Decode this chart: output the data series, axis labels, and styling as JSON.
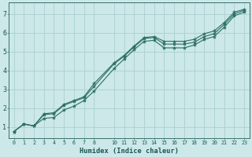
{
  "xlabel": "Humidex (Indice chaleur)",
  "bg_color": "#cce8e8",
  "line_color": "#2d6e65",
  "grid_color": "#aacfcf",
  "axis_color": "#3a7070",
  "text_color": "#1a5555",
  "xlim": [
    -0.5,
    23.5
  ],
  "ylim": [
    0.4,
    7.6
  ],
  "xticks": [
    0,
    1,
    2,
    3,
    4,
    5,
    6,
    7,
    8,
    10,
    11,
    12,
    13,
    14,
    15,
    16,
    17,
    18,
    19,
    20,
    21,
    22,
    23
  ],
  "yticks": [
    1,
    2,
    3,
    4,
    5,
    6,
    7
  ],
  "line1_x": [
    0,
    1,
    2,
    3,
    4,
    5,
    6,
    7,
    8,
    10,
    11,
    12,
    13,
    14,
    15,
    16,
    17,
    18,
    19,
    20,
    21,
    22,
    23
  ],
  "line1_y": [
    0.75,
    1.15,
    1.05,
    1.7,
    1.75,
    2.2,
    2.4,
    2.6,
    3.3,
    4.4,
    4.8,
    5.3,
    5.75,
    5.8,
    5.55,
    5.55,
    5.55,
    5.65,
    5.95,
    6.1,
    6.55,
    7.1,
    7.25
  ],
  "line2_x": [
    0,
    1,
    2,
    3,
    4,
    5,
    6,
    7,
    8,
    10,
    11,
    12,
    13,
    14,
    15,
    16,
    17,
    18,
    19,
    20,
    21,
    22,
    23
  ],
  "line2_y": [
    0.75,
    1.15,
    1.05,
    1.65,
    1.7,
    2.15,
    2.35,
    2.55,
    3.15,
    4.35,
    4.75,
    5.25,
    5.7,
    5.75,
    5.4,
    5.4,
    5.4,
    5.5,
    5.8,
    5.95,
    6.45,
    7.0,
    7.2
  ],
  "line3_x": [
    0,
    1,
    2,
    3,
    4,
    5,
    6,
    7,
    8,
    10,
    11,
    12,
    13,
    14,
    15,
    16,
    17,
    18,
    19,
    20,
    21,
    22,
    23
  ],
  "line3_y": [
    0.75,
    1.15,
    1.05,
    1.45,
    1.5,
    1.9,
    2.1,
    2.4,
    2.9,
    4.1,
    4.6,
    5.1,
    5.55,
    5.6,
    5.2,
    5.2,
    5.2,
    5.35,
    5.65,
    5.8,
    6.3,
    6.9,
    7.1
  ]
}
